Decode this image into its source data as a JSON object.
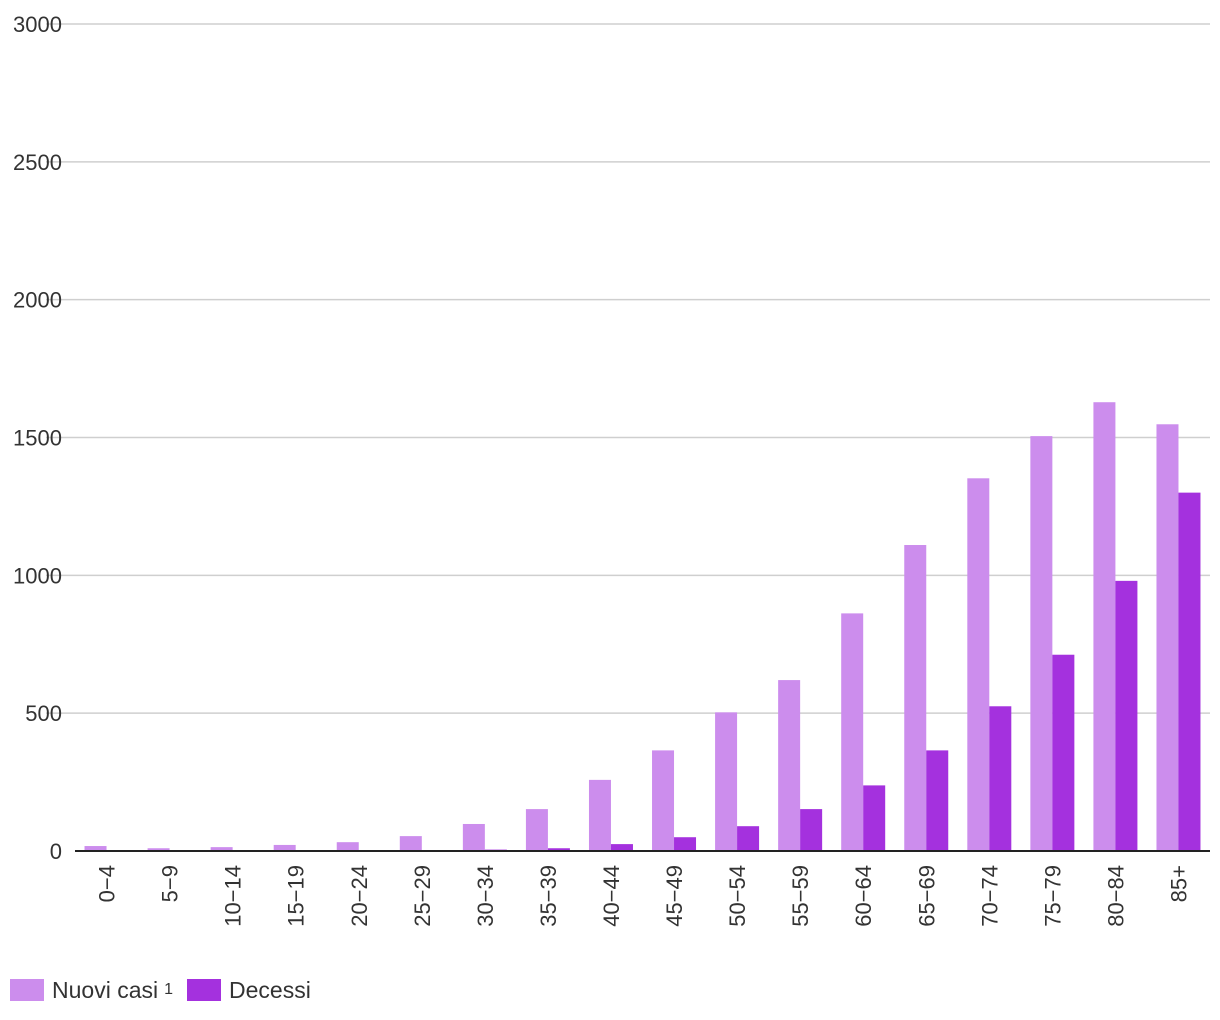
{
  "chart_data": {
    "type": "bar",
    "title": "",
    "xlabel": "",
    "ylabel": "",
    "ylim": [
      0,
      3000
    ],
    "yticks": [
      0,
      500,
      1000,
      1500,
      2000,
      2500,
      3000
    ],
    "grid": true,
    "legend_position": "bottom-left",
    "categories": [
      "0−4",
      "5−9",
      "10−14",
      "15−19",
      "20−24",
      "25−29",
      "30−34",
      "35−39",
      "40−44",
      "45−49",
      "50−54",
      "55−59",
      "60−64",
      "65−69",
      "70−74",
      "75−79",
      "80−84",
      "85+"
    ],
    "series": [
      {
        "name": "Nuovi casi",
        "name_superscript": "1",
        "color": "#cc8ded",
        "values": [
          18,
          10,
          14,
          22,
          32,
          54,
          98,
          152,
          258,
          365,
          503,
          620,
          862,
          1110,
          1352,
          1505,
          1628,
          1548
        ]
      },
      {
        "name": "Decessi",
        "color": "#a431de",
        "values": [
          0,
          0,
          0,
          0,
          0,
          1,
          5,
          10,
          25,
          50,
          90,
          152,
          238,
          365,
          525,
          712,
          980,
          1300
        ]
      }
    ]
  }
}
